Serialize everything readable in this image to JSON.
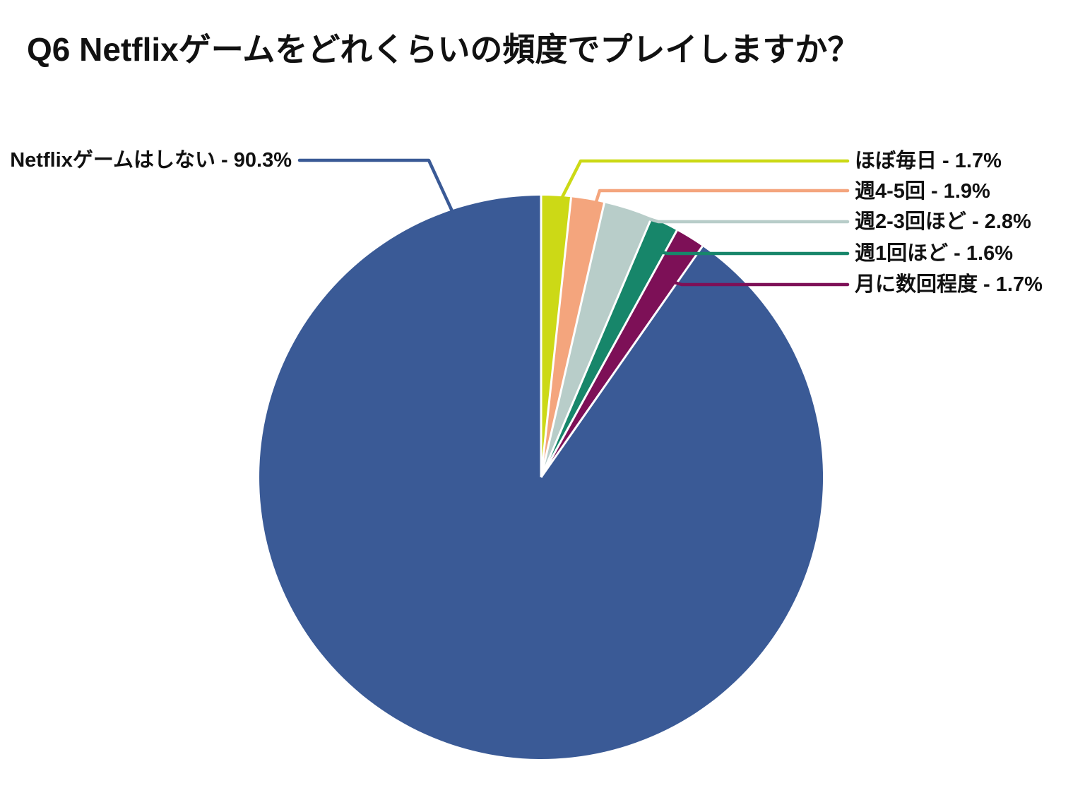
{
  "title": "Q6 Netflixゲームをどれくらいの頻度でプレイしますか？",
  "chart_data": {
    "type": "pie",
    "title": "Q6 Netflixゲームをどれくらいの頻度でプレイしますか？",
    "start_angle_deg": 0,
    "direction": "clockwise",
    "legend_position": "callout-labels",
    "units": "%",
    "total": 100,
    "slices": [
      {
        "label": "ほぼ毎日",
        "value": 1.7,
        "display": "ほぼ毎日 - 1.7%",
        "color": "#CCD916",
        "callout_side": "right"
      },
      {
        "label": "週4-5回",
        "value": 1.9,
        "display": "週4-5回 - 1.9%",
        "color": "#F4A57D",
        "callout_side": "right"
      },
      {
        "label": "週2-3回ほど",
        "value": 2.8,
        "display": "週2-3回ほど - 2.8%",
        "color": "#B8CDC9",
        "callout_side": "right"
      },
      {
        "label": "週1回ほど",
        "value": 1.6,
        "display": "週1回ほど - 1.6%",
        "color": "#17866A",
        "callout_side": "right"
      },
      {
        "label": "月に数回程度",
        "value": 1.7,
        "display": "月に数回程度 - 1.7%",
        "color": "#7D1057",
        "callout_side": "right"
      },
      {
        "label": "Netflixゲームはしない",
        "value": 90.3,
        "display": "Netflixゲームはしない - 90.3%",
        "color": "#3A5A96",
        "callout_side": "left"
      }
    ]
  }
}
